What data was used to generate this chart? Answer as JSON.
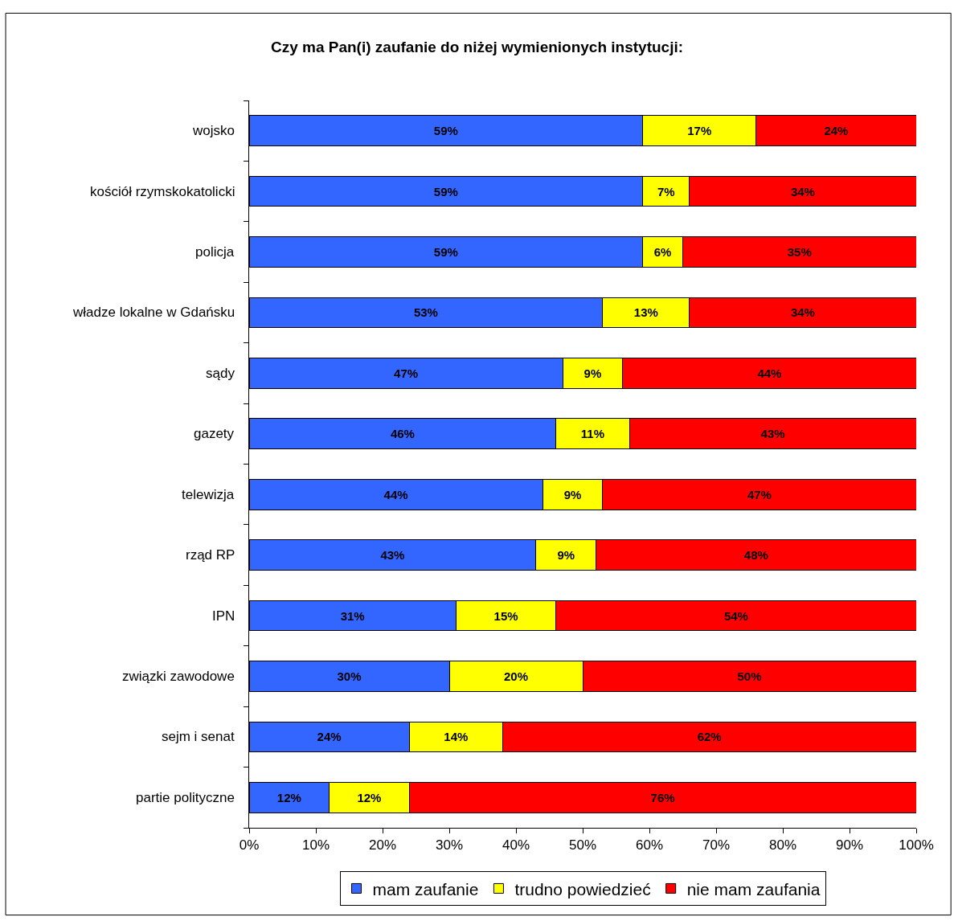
{
  "chart_data": {
    "type": "bar",
    "orientation": "horizontal",
    "stacked": true,
    "title": "Czy ma Pan(i) zaufanie do niżej wymienionych instytucji:",
    "categories": [
      "wojsko",
      "kościół rzymskokatolicki",
      "policja",
      "władze lokalne w Gdańsku",
      "sądy",
      "gazety",
      "telewizja",
      "rząd RP",
      "IPN",
      "związki zawodowe",
      "sejm i senat",
      "partie polityczne"
    ],
    "series": [
      {
        "name": "mam zaufanie",
        "color": "#3366ff",
        "values": [
          59,
          59,
          59,
          53,
          47,
          46,
          44,
          43,
          31,
          30,
          24,
          12
        ],
        "value_labels": [
          "59%",
          "59%",
          "59%",
          "53%",
          "47%",
          "46%",
          "44%",
          "43%",
          "31%",
          "30%",
          "24%",
          "12%"
        ]
      },
      {
        "name": "trudno powiedzieć",
        "color": "#ffff00",
        "values": [
          17,
          7,
          6,
          13,
          9,
          11,
          9,
          9,
          15,
          20,
          14,
          12
        ],
        "value_labels": [
          "17%",
          "7%",
          "6%",
          "13%",
          "9%",
          "11%",
          "9%",
          "9%",
          "15%",
          "20%",
          "14%",
          "12%"
        ]
      },
      {
        "name": "nie mam zaufania",
        "color": "#ff0000",
        "values": [
          24,
          34,
          35,
          34,
          44,
          43,
          47,
          48,
          54,
          50,
          62,
          76
        ],
        "value_labels": [
          "24%",
          "34%",
          "35%",
          "34%",
          "44%",
          "43%",
          "47%",
          "48%",
          "54%",
          "50%",
          "62%",
          "76%"
        ]
      }
    ],
    "xlim": [
      0,
      100
    ],
    "xticks": [
      {
        "value": 0,
        "label": "0%"
      },
      {
        "value": 10,
        "label": "10%"
      },
      {
        "value": 20,
        "label": "20%"
      },
      {
        "value": 30,
        "label": "30%"
      },
      {
        "value": 40,
        "label": "40%"
      },
      {
        "value": 50,
        "label": "50%"
      },
      {
        "value": 60,
        "label": "60%"
      },
      {
        "value": 70,
        "label": "70%"
      },
      {
        "value": 80,
        "label": "80%"
      },
      {
        "value": 90,
        "label": "90%"
      },
      {
        "value": 100,
        "label": "100%"
      }
    ],
    "legend": "bottom",
    "grid": false
  }
}
